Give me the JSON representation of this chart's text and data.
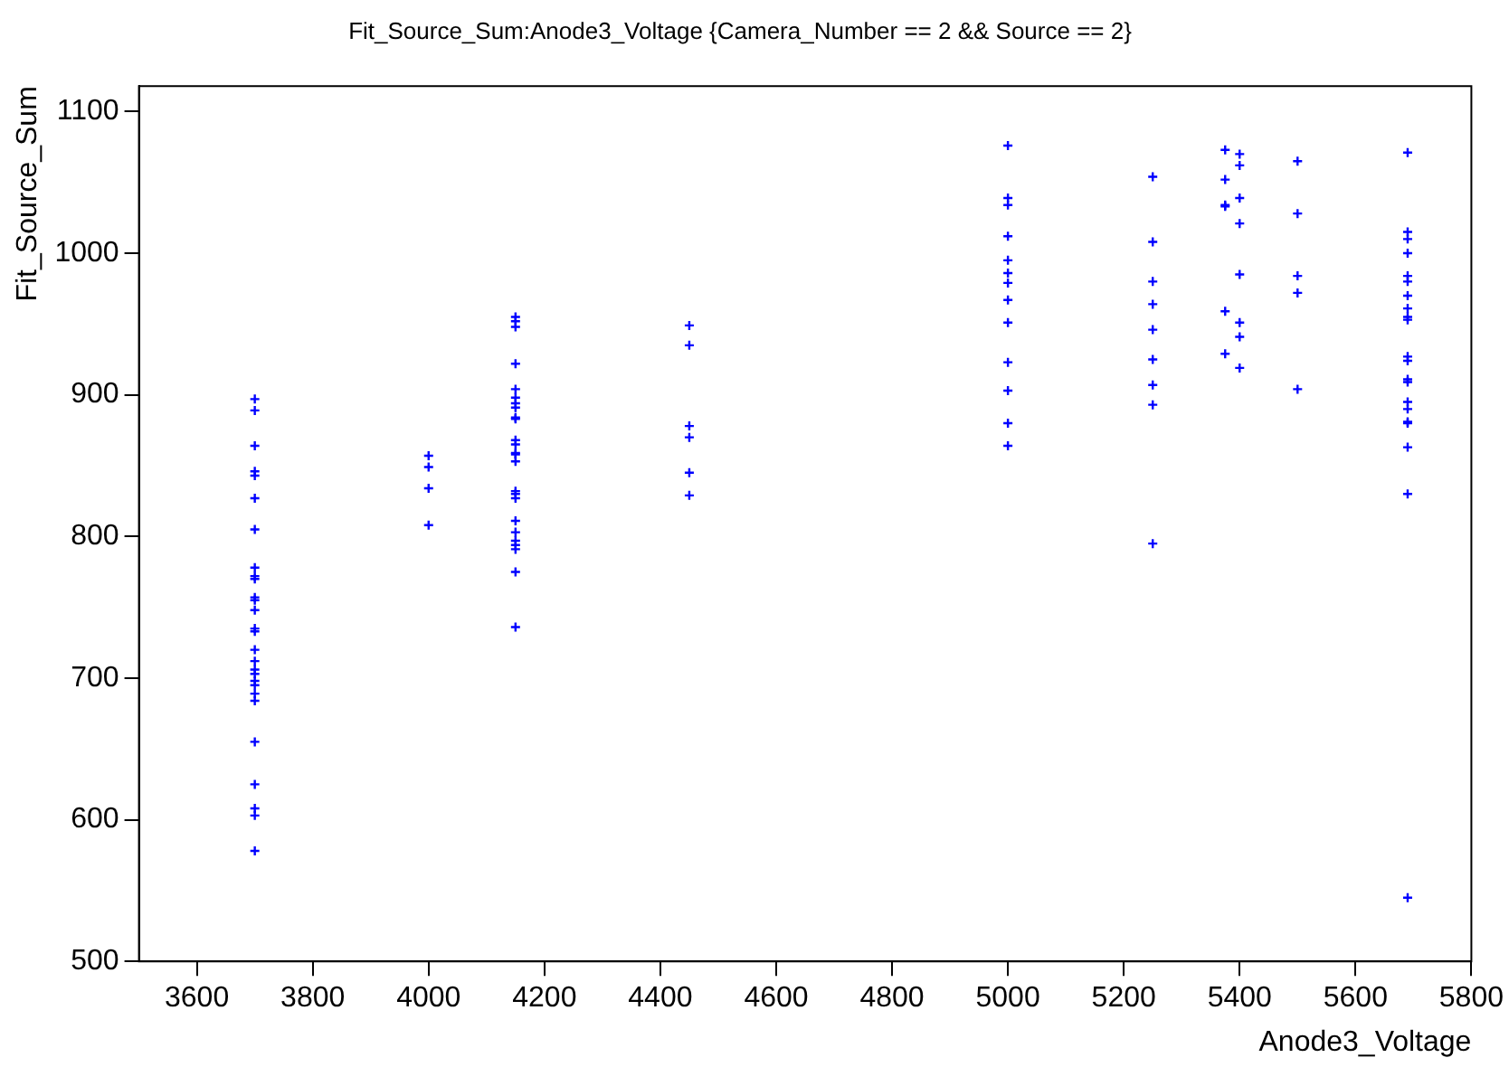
{
  "chart_data": {
    "type": "scatter",
    "title": "Fit_Source_Sum:Anode3_Voltage {Camera_Number == 2 && Source == 2}",
    "xlabel": "Anode3_Voltage",
    "ylabel": "Fit_Source_Sum",
    "x": [
      3700,
      3700,
      3700,
      3700,
      3700,
      3700,
      3700,
      3700,
      3700,
      3700,
      3700,
      3700,
      3700,
      3700,
      3700,
      3700,
      3700,
      3700,
      3700,
      3700,
      3700,
      3700,
      3700,
      3700,
      3700,
      3700,
      3700,
      3700,
      4000,
      4000,
      4000,
      4000,
      4150,
      4150,
      4150,
      4150,
      4150,
      4150,
      4150,
      4150,
      4150,
      4150,
      4150,
      4150,
      4150,
      4150,
      4150,
      4150,
      4150,
      4150,
      4150,
      4150,
      4150,
      4150,
      4150,
      4150,
      4150,
      4450,
      4450,
      4450,
      4450,
      4450,
      4450,
      5000,
      5000,
      5000,
      5000,
      5000,
      5000,
      5000,
      5000,
      5000,
      5000,
      5000,
      5000,
      5000,
      5250,
      5250,
      5250,
      5250,
      5250,
      5250,
      5250,
      5250,
      5250,
      5375,
      5375,
      5375,
      5375,
      5375,
      5375,
      5400,
      5400,
      5400,
      5400,
      5400,
      5400,
      5400,
      5400,
      5500,
      5500,
      5500,
      5500,
      5500,
      5690,
      5690,
      5690,
      5690,
      5690,
      5690,
      5690,
      5690,
      5690,
      5690,
      5690,
      5690,
      5690,
      5690,
      5690,
      5690,
      5690,
      5690,
      5690,
      5690,
      5690
    ],
    "values": [
      897,
      889,
      864,
      846,
      843,
      827,
      805,
      778,
      772,
      770,
      757,
      755,
      748,
      735,
      733,
      720,
      712,
      706,
      703,
      698,
      695,
      689,
      684,
      655,
      625,
      608,
      603,
      578,
      857,
      849,
      834,
      808,
      955,
      952,
      948,
      922,
      904,
      898,
      894,
      891,
      884,
      883,
      868,
      865,
      859,
      858,
      853,
      832,
      830,
      827,
      811,
      803,
      797,
      794,
      791,
      775,
      736,
      949,
      935,
      878,
      870,
      845,
      829,
      1076,
      1039,
      1034,
      1012,
      995,
      986,
      979,
      967,
      951,
      923,
      903,
      880,
      864,
      1054,
      1008,
      980,
      964,
      946,
      925,
      907,
      893,
      795,
      1073,
      1052,
      1034,
      1033,
      959,
      929,
      1070,
      1062,
      1039,
      1021,
      985,
      951,
      941,
      919,
      1065,
      1028,
      984,
      972,
      904,
      1071,
      1015,
      1010,
      1000,
      984,
      980,
      970,
      961,
      955,
      953,
      927,
      924,
      911,
      909,
      895,
      890,
      881,
      880,
      863,
      830,
      545
    ],
    "color": "#0000ff",
    "marker": "cross",
    "xlim": [
      3500,
      5800
    ],
    "ylim": [
      500,
      1118
    ],
    "xticks": [
      3600,
      3800,
      4000,
      4200,
      4400,
      4600,
      4800,
      5000,
      5200,
      5400,
      5600,
      5800
    ],
    "yticks": [
      500,
      600,
      700,
      800,
      900,
      1000,
      1100
    ],
    "grid": false,
    "legend": false
  }
}
